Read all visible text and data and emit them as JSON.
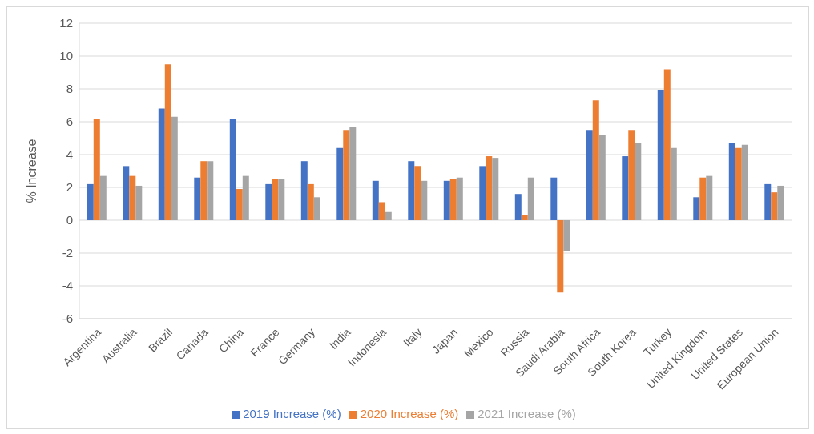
{
  "chart_data": {
    "type": "bar",
    "ylabel": "% Increase",
    "categories": [
      "Argentina",
      "Australia",
      "Brazil",
      "Canada",
      "China",
      "France",
      "Germany",
      "India",
      "Indonesia",
      "Italy",
      "Japan",
      "Mexico",
      "Russia",
      "Saudi Arabia",
      "South Africa",
      "South Korea",
      "Turkey",
      "United Kingdom",
      "United States",
      "European Union"
    ],
    "series": [
      {
        "name": "2019 Increase (%)",
        "color": "#4472c4",
        "values": [
          2.2,
          3.3,
          6.8,
          2.6,
          6.2,
          2.2,
          3.6,
          4.4,
          2.4,
          3.6,
          2.4,
          3.3,
          1.6,
          2.6,
          5.5,
          3.9,
          7.9,
          1.4,
          4.7,
          2.2
        ]
      },
      {
        "name": "2020 Increase (%)",
        "color": "#ed7d31",
        "values": [
          6.2,
          2.7,
          9.5,
          3.6,
          1.9,
          2.5,
          2.2,
          5.5,
          1.1,
          3.3,
          2.5,
          3.9,
          0.3,
          -4.4,
          7.3,
          5.5,
          9.2,
          2.6,
          4.4,
          1.7
        ]
      },
      {
        "name": "2021 Increase (%)",
        "color": "#a5a5a5",
        "values": [
          2.7,
          2.1,
          6.3,
          3.6,
          2.7,
          2.5,
          1.4,
          5.7,
          0.5,
          2.4,
          2.6,
          3.8,
          2.6,
          -1.9,
          5.2,
          4.7,
          4.4,
          2.7,
          4.6,
          2.1
        ]
      }
    ],
    "ylim": [
      -6,
      12
    ],
    "yticks": [
      -6,
      -4,
      -2,
      0,
      2,
      4,
      6,
      8,
      10,
      12
    ],
    "grid": "y",
    "legend": "bottom"
  }
}
